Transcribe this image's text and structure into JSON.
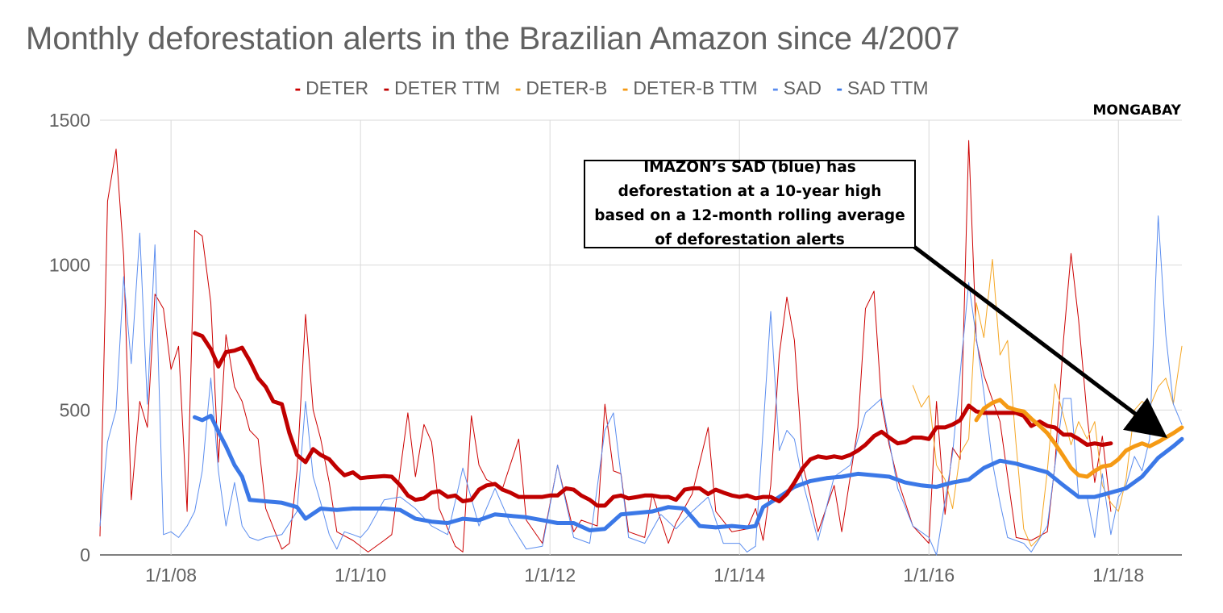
{
  "chart_data": {
    "type": "line",
    "title": "Monthly deforestation alerts in the Brazilian Amazon since 4/2007",
    "watermark": "MONGABAY",
    "xlabel": "",
    "ylabel": "",
    "ylim": [
      0,
      1500
    ],
    "yticks": [
      "0",
      "500",
      "1000",
      "1500"
    ],
    "x_ticks": [
      {
        "year": 2008,
        "label": "1/1/08"
      },
      {
        "year": 2010,
        "label": "1/1/10"
      },
      {
        "year": 2012,
        "label": "1/1/12"
      },
      {
        "year": 2014,
        "label": "1/1/14"
      },
      {
        "year": 2016,
        "label": "1/1/16"
      },
      {
        "year": 2018,
        "label": "1/1/18"
      }
    ],
    "xlim": [
      2007.25,
      2018.67
    ],
    "grid": true,
    "legend_position": "top",
    "annotation": "IMAZON’s SAD (blue) has deforestation at a 10-year high based on a 12-month rolling average of deforestation alerts",
    "series": [
      {
        "name": "DETER",
        "color": "#cc0000",
        "width": 1,
        "x": [
          2007.25,
          2007.33,
          2007.42,
          2007.5,
          2007.58,
          2007.67,
          2007.75,
          2007.83,
          2007.92,
          2008.0,
          2008.08,
          2008.17,
          2008.25,
          2008.33,
          2008.42,
          2008.5,
          2008.58,
          2008.67,
          2008.75,
          2008.83,
          2008.92,
          2009.0,
          2009.17,
          2009.25,
          2009.33,
          2009.42,
          2009.5,
          2009.58,
          2009.67,
          2009.75,
          2009.92,
          2010.08,
          2010.25,
          2010.33,
          2010.5,
          2010.58,
          2010.67,
          2010.75,
          2010.83,
          2011.0,
          2011.08,
          2011.17,
          2011.25,
          2011.33,
          2011.5,
          2011.67,
          2011.75,
          2011.92,
          2012.08,
          2012.25,
          2012.33,
          2012.5,
          2012.58,
          2012.67,
          2012.75,
          2012.83,
          2013.0,
          2013.08,
          2013.25,
          2013.33,
          2013.5,
          2013.67,
          2013.75,
          2013.92,
          2014.08,
          2014.17,
          2014.25,
          2014.33,
          2014.42,
          2014.5,
          2014.58,
          2014.67,
          2014.75,
          2014.83,
          2015.0,
          2015.08,
          2015.25,
          2015.33,
          2015.42,
          2015.5,
          2015.58,
          2015.67,
          2015.83,
          2016.0,
          2016.08,
          2016.17,
          2016.25,
          2016.33,
          2016.42,
          2016.5,
          2016.58,
          2016.75,
          2016.92,
          2017.08,
          2017.25,
          2017.33,
          2017.42,
          2017.5,
          2017.58,
          2017.67,
          2017.75,
          2017.83,
          2017.92
        ],
        "values": [
          65,
          1220,
          1400,
          1030,
          190,
          530,
          440,
          900,
          850,
          640,
          720,
          150,
          1120,
          1100,
          870,
          320,
          760,
          580,
          530,
          430,
          400,
          160,
          20,
          40,
          290,
          830,
          500,
          400,
          250,
          80,
          50,
          10,
          50,
          70,
          490,
          270,
          450,
          390,
          160,
          30,
          10,
          480,
          310,
          260,
          230,
          400,
          120,
          40,
          310,
          80,
          120,
          100,
          520,
          290,
          280,
          80,
          60,
          210,
          40,
          110,
          210,
          440,
          150,
          80,
          90,
          160,
          50,
          240,
          690,
          890,
          740,
          310,
          200,
          80,
          240,
          80,
          440,
          850,
          910,
          520,
          380,
          260,
          100,
          40,
          530,
          140,
          370,
          330,
          1430,
          740,
          620,
          460,
          60,
          50,
          80,
          310,
          740,
          1040,
          810,
          480,
          250,
          410,
          150
        ]
      },
      {
        "name": "DETER TTM",
        "color": "#c00000",
        "width": 5,
        "x": [
          2008.25,
          2008.33,
          2008.42,
          2008.5,
          2008.58,
          2008.67,
          2008.75,
          2008.83,
          2008.92,
          2009.0,
          2009.08,
          2009.17,
          2009.25,
          2009.33,
          2009.42,
          2009.5,
          2009.58,
          2009.67,
          2009.75,
          2009.83,
          2009.92,
          2010.0,
          2010.08,
          2010.17,
          2010.25,
          2010.33,
          2010.42,
          2010.5,
          2010.58,
          2010.67,
          2010.75,
          2010.83,
          2010.92,
          2011.0,
          2011.08,
          2011.17,
          2011.25,
          2011.33,
          2011.42,
          2011.5,
          2011.58,
          2011.67,
          2011.75,
          2011.83,
          2011.92,
          2012.0,
          2012.08,
          2012.17,
          2012.25,
          2012.33,
          2012.42,
          2012.5,
          2012.58,
          2012.67,
          2012.75,
          2012.83,
          2012.92,
          2013.0,
          2013.08,
          2013.17,
          2013.25,
          2013.33,
          2013.42,
          2013.5,
          2013.58,
          2013.67,
          2013.75,
          2013.83,
          2013.92,
          2014.0,
          2014.08,
          2014.17,
          2014.25,
          2014.33,
          2014.42,
          2014.5,
          2014.58,
          2014.67,
          2014.75,
          2014.83,
          2014.92,
          2015.0,
          2015.08,
          2015.17,
          2015.25,
          2015.33,
          2015.42,
          2015.5,
          2015.58,
          2015.67,
          2015.75,
          2015.83,
          2015.92,
          2016.0,
          2016.08,
          2016.17,
          2016.25,
          2016.33,
          2016.42,
          2016.5,
          2016.58,
          2016.67,
          2016.75,
          2016.83,
          2016.92,
          2017.0,
          2017.08,
          2017.17,
          2017.25,
          2017.33,
          2017.42,
          2017.5,
          2017.58,
          2017.67,
          2017.75,
          2017.83,
          2017.92
        ],
        "values": [
          765,
          755,
          710,
          650,
          700,
          705,
          715,
          670,
          610,
          580,
          530,
          520,
          420,
          345,
          320,
          365,
          345,
          330,
          300,
          275,
          285,
          265,
          268,
          270,
          272,
          270,
          240,
          205,
          190,
          195,
          215,
          220,
          200,
          205,
          185,
          190,
          225,
          240,
          245,
          225,
          215,
          200,
          200,
          200,
          200,
          205,
          205,
          230,
          225,
          205,
          190,
          170,
          170,
          200,
          205,
          195,
          200,
          205,
          205,
          200,
          200,
          190,
          225,
          230,
          230,
          210,
          225,
          215,
          205,
          200,
          205,
          195,
          200,
          200,
          185,
          210,
          250,
          300,
          330,
          340,
          335,
          340,
          335,
          345,
          360,
          380,
          410,
          425,
          405,
          385,
          390,
          405,
          405,
          400,
          440,
          440,
          450,
          465,
          515,
          495,
          490,
          490,
          490,
          490,
          490,
          480,
          445,
          460,
          445,
          440,
          415,
          415,
          400,
          380,
          385,
          380,
          385
        ]
      },
      {
        "name": "DETER-B",
        "color": "#f5a623",
        "width": 1,
        "x": [
          2015.83,
          2015.92,
          2016.0,
          2016.08,
          2016.17,
          2016.25,
          2016.33,
          2016.42,
          2016.5,
          2016.58,
          2016.67,
          2016.75,
          2016.83,
          2016.92,
          2017.0,
          2017.08,
          2017.17,
          2017.25,
          2017.33,
          2017.42,
          2017.5,
          2017.58,
          2017.67,
          2017.75,
          2017.83,
          2017.92,
          2018.0,
          2018.08,
          2018.17,
          2018.25,
          2018.33,
          2018.42,
          2018.5,
          2018.58,
          2018.67
        ],
        "values": [
          585,
          510,
          550,
          310,
          260,
          160,
          350,
          400,
          870,
          750,
          1020,
          690,
          740,
          380,
          90,
          30,
          60,
          290,
          590,
          480,
          380,
          460,
          400,
          460,
          240,
          180,
          150,
          260,
          500,
          530,
          510,
          580,
          610,
          520,
          720
        ]
      },
      {
        "name": "DETER-B TTM",
        "color": "#f59a14",
        "width": 5,
        "x": [
          2016.5,
          2016.58,
          2016.67,
          2016.75,
          2016.83,
          2016.92,
          2017.0,
          2017.08,
          2017.17,
          2017.25,
          2017.33,
          2017.42,
          2017.5,
          2017.58,
          2017.67,
          2017.75,
          2017.83,
          2017.92,
          2018.0,
          2018.08,
          2018.17,
          2018.25,
          2018.33,
          2018.42,
          2018.5,
          2018.58,
          2018.67
        ],
        "values": [
          465,
          505,
          525,
          535,
          510,
          500,
          495,
          470,
          445,
          420,
          385,
          340,
          300,
          275,
          270,
          290,
          305,
          310,
          330,
          360,
          375,
          385,
          375,
          390,
          405,
          420,
          440
        ]
      },
      {
        "name": "SAD",
        "color": "#5b8def",
        "width": 1,
        "x": [
          2007.25,
          2007.33,
          2007.42,
          2007.5,
          2007.58,
          2007.67,
          2007.75,
          2007.83,
          2007.92,
          2008.0,
          2008.08,
          2008.17,
          2008.25,
          2008.33,
          2008.42,
          2008.5,
          2008.58,
          2008.67,
          2008.75,
          2008.83,
          2008.92,
          2009.0,
          2009.17,
          2009.33,
          2009.42,
          2009.5,
          2009.58,
          2009.67,
          2009.75,
          2009.83,
          2009.92,
          2010.0,
          2010.08,
          2010.25,
          2010.42,
          2010.58,
          2010.75,
          2010.92,
          2011.08,
          2011.25,
          2011.42,
          2011.58,
          2011.75,
          2011.92,
          2012.08,
          2012.25,
          2012.42,
          2012.58,
          2012.67,
          2012.83,
          2013.0,
          2013.17,
          2013.33,
          2013.5,
          2013.67,
          2013.83,
          2014.0,
          2014.08,
          2014.17,
          2014.33,
          2014.42,
          2014.5,
          2014.58,
          2014.67,
          2014.83,
          2015.0,
          2015.17,
          2015.33,
          2015.5,
          2015.67,
          2015.83,
          2016.0,
          2016.08,
          2016.25,
          2016.42,
          2016.5,
          2016.58,
          2016.67,
          2016.75,
          2016.83,
          2017.0,
          2017.08,
          2017.25,
          2017.42,
          2017.5,
          2017.58,
          2017.67,
          2017.75,
          2017.83,
          2017.92,
          2018.0,
          2018.08,
          2018.17,
          2018.25,
          2018.33,
          2018.42,
          2018.5,
          2018.58,
          2018.67
        ],
        "values": [
          100,
          390,
          500,
          960,
          660,
          1110,
          520,
          1070,
          70,
          80,
          60,
          100,
          150,
          290,
          610,
          290,
          100,
          250,
          100,
          60,
          50,
          60,
          70,
          150,
          530,
          270,
          180,
          70,
          20,
          80,
          70,
          60,
          90,
          190,
          200,
          160,
          100,
          70,
          300,
          100,
          230,
          110,
          20,
          30,
          310,
          60,
          40,
          430,
          490,
          60,
          40,
          140,
          90,
          150,
          200,
          40,
          40,
          10,
          30,
          840,
          360,
          430,
          400,
          250,
          50,
          270,
          310,
          490,
          540,
          230,
          100,
          60,
          0,
          350,
          940,
          750,
          560,
          320,
          180,
          60,
          40,
          10,
          100,
          540,
          540,
          200,
          200,
          60,
          280,
          70,
          200,
          240,
          340,
          290,
          400,
          1170,
          760,
          520,
          450
        ]
      },
      {
        "name": "SAD TTM",
        "color": "#3b78e7",
        "width": 5,
        "x": [
          2008.25,
          2008.33,
          2008.42,
          2008.5,
          2008.58,
          2008.67,
          2008.75,
          2008.83,
          2009.0,
          2009.17,
          2009.33,
          2009.42,
          2009.58,
          2009.75,
          2009.92,
          2010.08,
          2010.25,
          2010.42,
          2010.58,
          2010.75,
          2010.92,
          2011.08,
          2011.25,
          2011.42,
          2011.58,
          2011.75,
          2011.92,
          2012.08,
          2012.25,
          2012.42,
          2012.58,
          2012.75,
          2012.92,
          2013.08,
          2013.25,
          2013.42,
          2013.58,
          2013.75,
          2013.92,
          2014.08,
          2014.17,
          2014.25,
          2014.42,
          2014.58,
          2014.75,
          2014.92,
          2015.08,
          2015.25,
          2015.42,
          2015.58,
          2015.75,
          2015.92,
          2016.08,
          2016.25,
          2016.42,
          2016.58,
          2016.75,
          2016.92,
          2017.08,
          2017.25,
          2017.42,
          2017.58,
          2017.75,
          2017.92,
          2018.08,
          2018.25,
          2018.42,
          2018.58,
          2018.67
        ],
        "values": [
          475,
          465,
          480,
          425,
          375,
          310,
          270,
          190,
          185,
          180,
          165,
          125,
          160,
          155,
          160,
          160,
          160,
          155,
          125,
          115,
          110,
          125,
          120,
          140,
          135,
          130,
          120,
          110,
          110,
          85,
          90,
          140,
          145,
          150,
          165,
          160,
          100,
          95,
          100,
          95,
          100,
          165,
          200,
          235,
          255,
          265,
          270,
          280,
          275,
          270,
          250,
          240,
          235,
          250,
          260,
          300,
          325,
          315,
          300,
          285,
          240,
          200,
          200,
          215,
          230,
          270,
          335,
          375,
          400
        ]
      }
    ]
  }
}
